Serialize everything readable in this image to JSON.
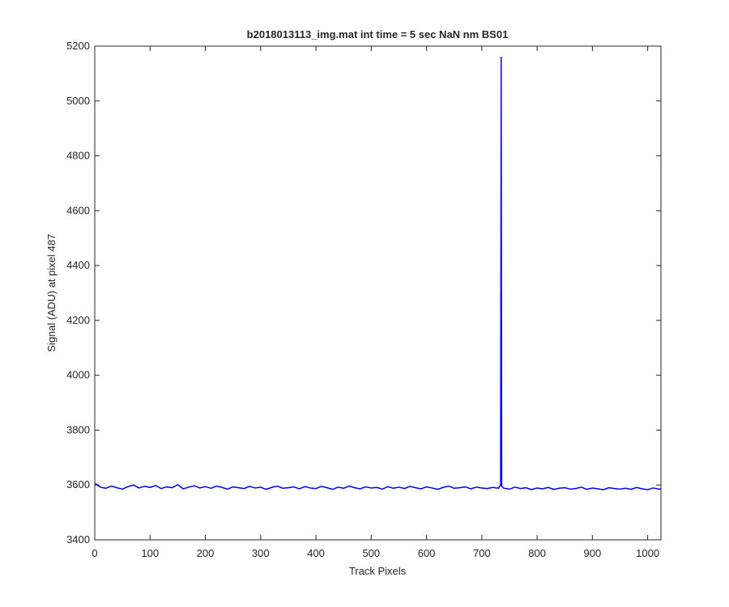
{
  "chart_data": {
    "type": "line",
    "title": "b2018013113_img.mat int time = 5 sec  NaN nm BS01",
    "x_label": "Track Pixels",
    "y_label": "Signal (ADU) at pixel 487",
    "x": [
      1,
      10,
      20,
      30,
      40,
      50,
      60,
      70,
      80,
      90,
      100,
      110,
      120,
      130,
      140,
      150,
      160,
      170,
      180,
      190,
      200,
      210,
      220,
      230,
      240,
      250,
      260,
      270,
      280,
      290,
      300,
      310,
      320,
      330,
      340,
      350,
      360,
      370,
      380,
      390,
      400,
      410,
      420,
      430,
      440,
      450,
      460,
      470,
      480,
      490,
      500,
      510,
      520,
      530,
      540,
      550,
      560,
      570,
      580,
      590,
      600,
      610,
      620,
      630,
      640,
      650,
      660,
      670,
      680,
      690,
      700,
      710,
      720,
      730,
      734,
      735,
      736,
      740,
      750,
      760,
      770,
      780,
      790,
      800,
      810,
      820,
      830,
      840,
      850,
      860,
      870,
      880,
      890,
      900,
      910,
      920,
      930,
      940,
      950,
      960,
      970,
      980,
      990,
      1000,
      1010,
      1020,
      1024
    ],
    "series": [
      {
        "color": "#0000ff",
        "values": [
          3605,
          3592,
          3588,
          3596,
          3590,
          3585,
          3594,
          3600,
          3589,
          3595,
          3591,
          3598,
          3587,
          3593,
          3590,
          3601,
          3586,
          3592,
          3597,
          3589,
          3594,
          3588,
          3596,
          3591,
          3585,
          3593,
          3590,
          3587,
          3595,
          3589,
          3592,
          3584,
          3591,
          3596,
          3588,
          3590,
          3593,
          3586,
          3594,
          3589,
          3587,
          3595,
          3590,
          3584,
          3592,
          3588,
          3596,
          3590,
          3586,
          3593,
          3589,
          3591,
          3585,
          3594,
          3588,
          3592,
          3587,
          3595,
          3590,
          3586,
          3593,
          3589,
          3584,
          3591,
          3596,
          3588,
          3590,
          3593,
          3586,
          3592,
          3589,
          3587,
          3591,
          3588,
          3600,
          5160,
          3595,
          3588,
          3585,
          3592,
          3587,
          3590,
          3583,
          3589,
          3586,
          3591,
          3584,
          3588,
          3590,
          3585,
          3587,
          3592,
          3584,
          3589,
          3586,
          3583,
          3590,
          3587,
          3585,
          3588,
          3584,
          3591,
          3586,
          3583,
          3589,
          3585,
          3586
        ]
      }
    ],
    "xlim": [
      0,
      1024
    ],
    "ylim": [
      3400,
      5200
    ],
    "xticks": [
      0,
      100,
      200,
      300,
      400,
      500,
      600,
      700,
      800,
      900,
      1000
    ],
    "yticks": [
      3400,
      3600,
      3800,
      4000,
      4200,
      4400,
      4600,
      4800,
      5000,
      5200
    ]
  }
}
